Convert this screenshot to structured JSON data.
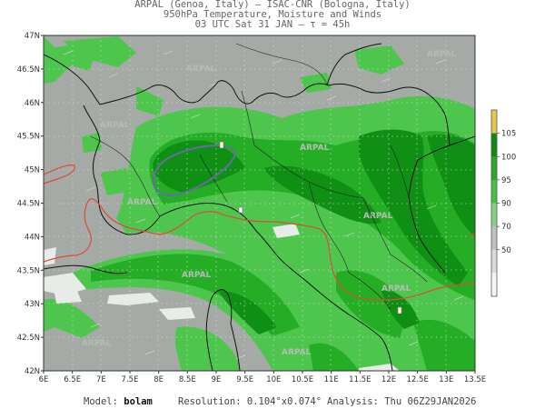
{
  "header": {
    "line1": "ARPAL (Genoa, Italy)  —  ISAC-CNR (Bologna, Italy)",
    "line2": "950hPa Temperature, Moisture and Winds",
    "line3": "03 UTC Sat 31 JAN  —  τ = 45h"
  },
  "map": {
    "lat_ticks": [
      "47N",
      "46.5N",
      "46N",
      "45.5N",
      "45N",
      "44.5N",
      "44N",
      "43.5N",
      "43N",
      "42.5N",
      "42N"
    ],
    "lon_ticks": [
      "6E",
      "6.5E",
      "7E",
      "7.5E",
      "8E",
      "8.5E",
      "9E",
      "9.5E",
      "10E",
      "10.5E",
      "11E",
      "11.5E",
      "12E",
      "12.5E",
      "13E",
      "13.5E"
    ],
    "lat_range": [
      42,
      47
    ],
    "lon_range": [
      6,
      13.5
    ],
    "watermark": "ARPAL",
    "colors": {
      "background": "#a6aaa6",
      "green_light": "#4ec64e",
      "green_mid": "#26ad26",
      "green_dark": "#0f8f14",
      "isotherm": "#e0483a",
      "closed_contour": "#6b6aa8",
      "coast": "#111111",
      "white_patch": "#e9ebe9"
    }
  },
  "colorbar": {
    "labels": [
      "105",
      "100",
      "95",
      "90",
      "70",
      "50"
    ],
    "colors": [
      "#e8c64b",
      "#0c8a14",
      "#27a827",
      "#47c047",
      "#87d187",
      "#bcc3bc",
      "#d9ddd9",
      "#f5f5f5"
    ]
  },
  "footer": {
    "model_label": "Model:",
    "model_value": "bolam",
    "resolution_label": "Resolution:",
    "resolution_value": "0.104°x0.074°",
    "analysis_label": "Analysis:",
    "analysis_value": "Thu 06Z29JAN2026"
  }
}
